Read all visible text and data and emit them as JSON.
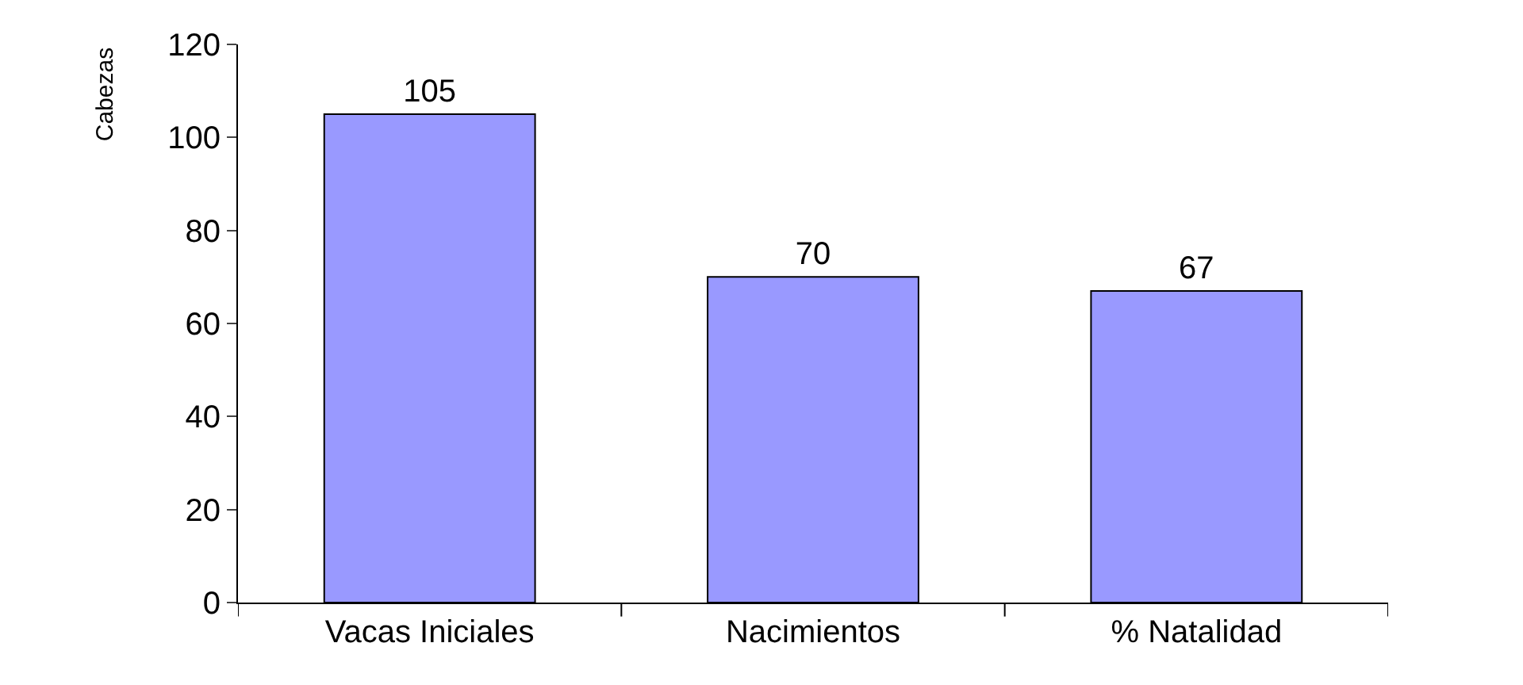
{
  "chart_data": {
    "type": "bar",
    "ylabel": "Cabezas",
    "categories": [
      "Vacas Iniciales",
      "Nacimientos",
      "% Natalidad"
    ],
    "values": [
      105,
      70,
      67
    ],
    "color": "#9999ff",
    "data_labels": true,
    "ylim": [
      0,
      120
    ],
    "yticks": [
      0,
      20,
      40,
      60,
      80,
      100,
      120
    ]
  }
}
